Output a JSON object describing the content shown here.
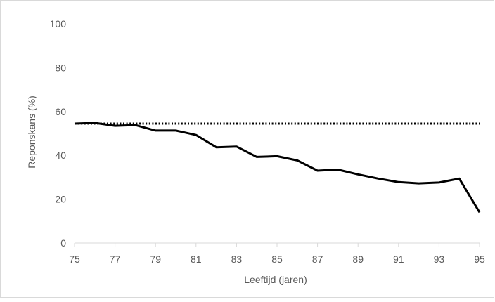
{
  "chart_data": {
    "type": "line",
    "title": "",
    "xlabel": "Leeftijd (jaren)",
    "ylabel": "Reponskans (%)",
    "xlim": [
      75,
      95
    ],
    "ylim": [
      0,
      100
    ],
    "x_ticks": [
      "75",
      "77",
      "79",
      "81",
      "83",
      "85",
      "87",
      "89",
      "91",
      "93",
      "95"
    ],
    "y_ticks": [
      "0",
      "20",
      "40",
      "60",
      "80",
      "100"
    ],
    "grid": false,
    "legend": "none",
    "series": [
      {
        "style": "solid",
        "color": "#000000",
        "x": [
          75,
          76,
          77,
          78,
          79,
          80,
          81,
          82,
          83,
          84,
          85,
          86,
          87,
          88,
          89,
          90,
          91,
          92,
          93,
          94,
          95
        ],
        "y": [
          54.5,
          54.8,
          53.5,
          53.8,
          51.3,
          51.3,
          49.3,
          43.7,
          44.0,
          39.3,
          39.6,
          37.7,
          33.0,
          33.5,
          31.3,
          29.4,
          27.8,
          27.2,
          27.6,
          29.4,
          14.0
        ]
      },
      {
        "style": "dotted",
        "color": "#000000",
        "x": [
          75,
          95
        ],
        "y": [
          54.5,
          54.5
        ]
      }
    ]
  }
}
